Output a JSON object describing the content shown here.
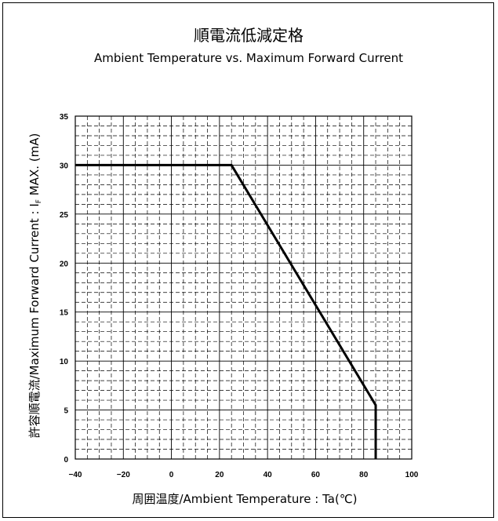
{
  "chart_data": {
    "type": "line",
    "title": "順電流低減定格",
    "subtitle": "Ambient Temperature vs. Maximum Forward Current",
    "xlabel": "周囲温度/Ambient Temperature : Ta(℃)",
    "ylabel_main": "許容順電流/Maximum Forward Current : I",
    "ylabel_sub": "F",
    "ylabel_tail": " MAX. (mA)",
    "xlim": [
      -40,
      100
    ],
    "ylim": [
      0,
      35
    ],
    "x_ticks": [
      -40,
      -20,
      0,
      20,
      40,
      60,
      80,
      100
    ],
    "y_ticks": [
      0,
      5,
      10,
      15,
      20,
      25,
      30,
      35
    ],
    "x_tick_labels": [
      "−40",
      "−20",
      "0",
      "20",
      "40",
      "60",
      "80",
      "100"
    ],
    "y_tick_labels": [
      "0",
      "5",
      "10",
      "15",
      "20",
      "25",
      "30",
      "35"
    ],
    "grid": true,
    "series": [
      {
        "x": [
          -40,
          25,
          85,
          85
        ],
        "y": [
          30,
          30,
          5.5,
          0
        ]
      }
    ],
    "line_color": "#000000",
    "grid_color": "#000000"
  }
}
